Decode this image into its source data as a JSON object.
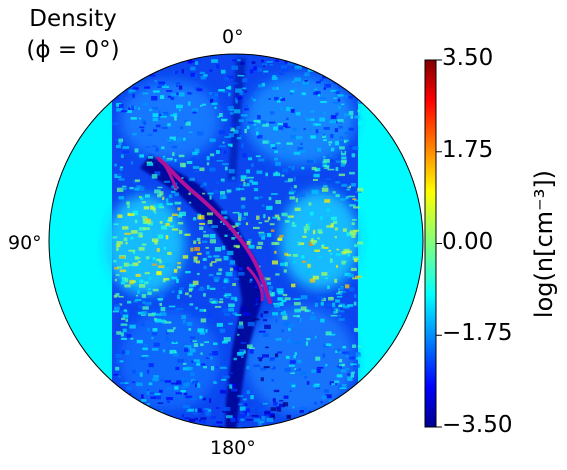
{
  "chart_data": {
    "type": "heatmap",
    "projection": "polar",
    "title_line1": "Density",
    "title_line2": "(ϕ = 0°)",
    "angular_ticks": [
      {
        "label": "0°",
        "theta_deg": 0
      },
      {
        "label": "90°",
        "theta_deg": 90
      },
      {
        "label": "180°",
        "theta_deg": 180
      }
    ],
    "colorbar": {
      "label": "log(n[cm⁻³])",
      "min": -3.5,
      "max": 3.5,
      "colormap": "jet",
      "ticks": [
        {
          "value": 3.5,
          "label": "3.50"
        },
        {
          "value": 1.75,
          "label": "1.75"
        },
        {
          "value": 0.0,
          "label": "0.00"
        },
        {
          "value": -1.75,
          "label": "−1.75"
        },
        {
          "value": -3.5,
          "label": "−3.50"
        }
      ]
    },
    "contour_color": "#b0129a",
    "background_fill_value": -0.9
  }
}
